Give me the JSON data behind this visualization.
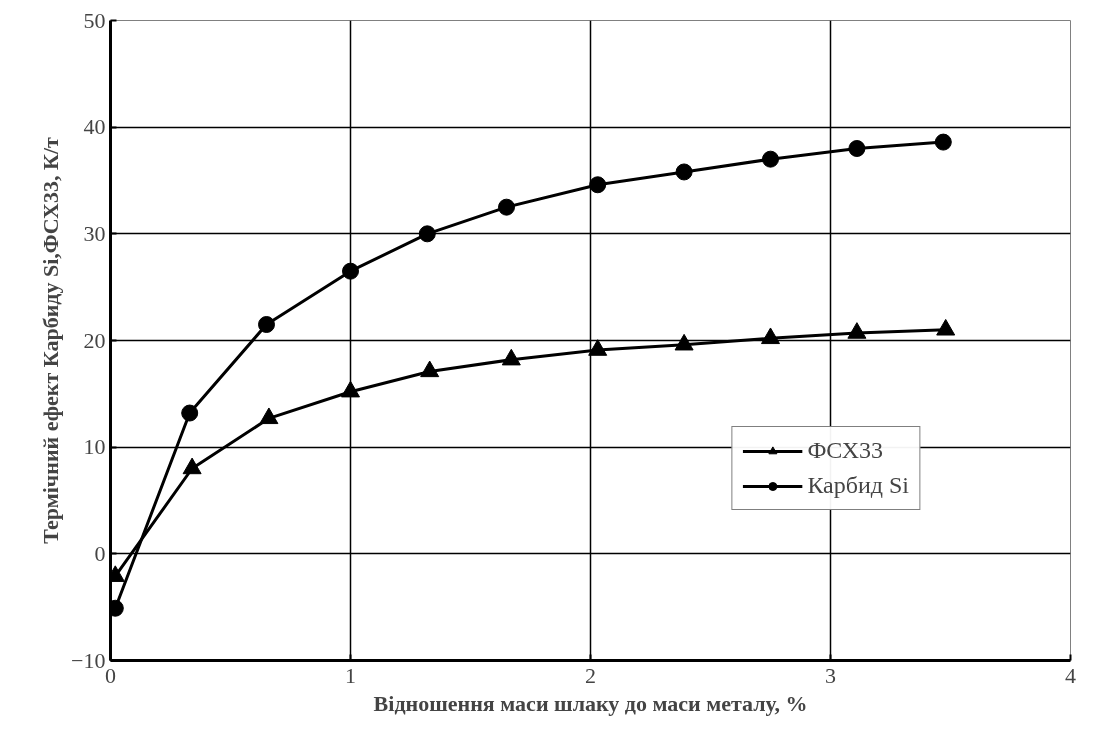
{
  "chart_data": {
    "type": "line",
    "xlabel": "Відношення маси шлаку до маси металу, %",
    "ylabel": "Термічний ефект Карбиду Si,ФСХ33, К/т",
    "series": [
      {
        "name": "ФСХ33",
        "color": "#000000",
        "marker": "triangle",
        "x": [
          0.02,
          0.34,
          0.66,
          1.0,
          1.33,
          1.67,
          2.03,
          2.39,
          2.75,
          3.11,
          3.48
        ],
        "values": [
          -2.1,
          8.0,
          12.7,
          15.2,
          17.1,
          18.2,
          19.1,
          19.6,
          20.2,
          20.7,
          21.0
        ]
      },
      {
        "name": "Карбид Si",
        "color": "#000000",
        "marker": "circle",
        "x": [
          0.02,
          0.33,
          0.65,
          1.0,
          1.32,
          1.65,
          2.03,
          2.39,
          2.75,
          3.11,
          3.47
        ],
        "values": [
          -5.1,
          13.2,
          21.5,
          26.5,
          30.0,
          32.5,
          34.6,
          35.8,
          37.0,
          38.0,
          38.6
        ]
      }
    ],
    "xlim": [
      0,
      4
    ],
    "xticks": [
      0,
      1,
      2,
      3,
      4
    ],
    "ylim": [
      -10,
      50
    ],
    "yticks": [
      -10,
      0,
      10,
      20,
      30,
      40,
      50
    ],
    "grid": true,
    "legend": "bottom right",
    "line_style": "solid"
  }
}
